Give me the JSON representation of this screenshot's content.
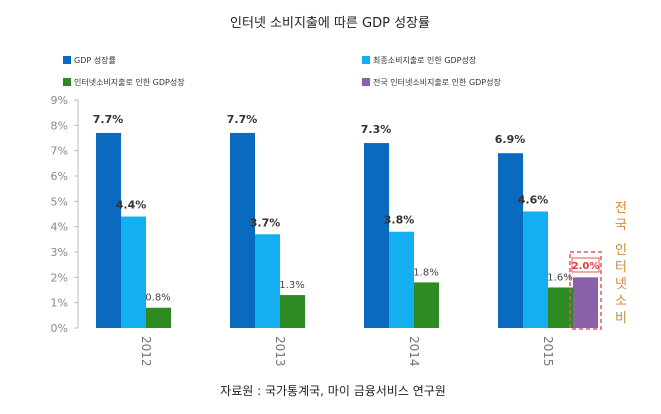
{
  "chart_data": {
    "type": "bar",
    "title": "인터넷 소비지출에 따른 GDP 성장률",
    "categories": [
      "2012",
      "2013",
      "2014",
      "2015"
    ],
    "series": [
      {
        "name": "GDP 성장률",
        "color": "#0a6ac0",
        "values": [
          7.7,
          7.7,
          7.3,
          6.9
        ],
        "labels": [
          "7.7%",
          "7.7%",
          "7.3%",
          "6.9%"
        ]
      },
      {
        "name": "최종소비지출로 인한 GDP성장",
        "color": "#14aff0",
        "values": [
          4.4,
          3.7,
          3.8,
          4.6
        ],
        "labels": [
          "4.4%",
          "3.7%",
          "3.8%",
          "4.6%"
        ]
      },
      {
        "name": "인터넷소비지출로 인한 GDP성장",
        "color": "#2e8b24",
        "values": [
          0.8,
          1.3,
          1.8,
          1.6
        ],
        "labels": [
          "0.8%",
          "1.3%",
          "1.8%",
          "1.6%"
        ]
      },
      {
        "name": "전국 인터넷소비지출로 인한 GDP성장",
        "color": "#8a60a8",
        "values": [
          null,
          null,
          null,
          2.0
        ],
        "labels": [
          null,
          null,
          null,
          "2.0%"
        ]
      }
    ],
    "ylim": [
      0,
      9
    ],
    "yticks": [
      "0%",
      "1%",
      "2%",
      "3%",
      "4%",
      "5%",
      "6%",
      "7%",
      "8%",
      "9%"
    ],
    "xlabel": "",
    "ylabel": "",
    "grid": false,
    "legend_position": "top",
    "annotation": "전국 인터넷소비",
    "source": "자료원 : 국가통계국, 마이 금융서비스 연구원"
  }
}
